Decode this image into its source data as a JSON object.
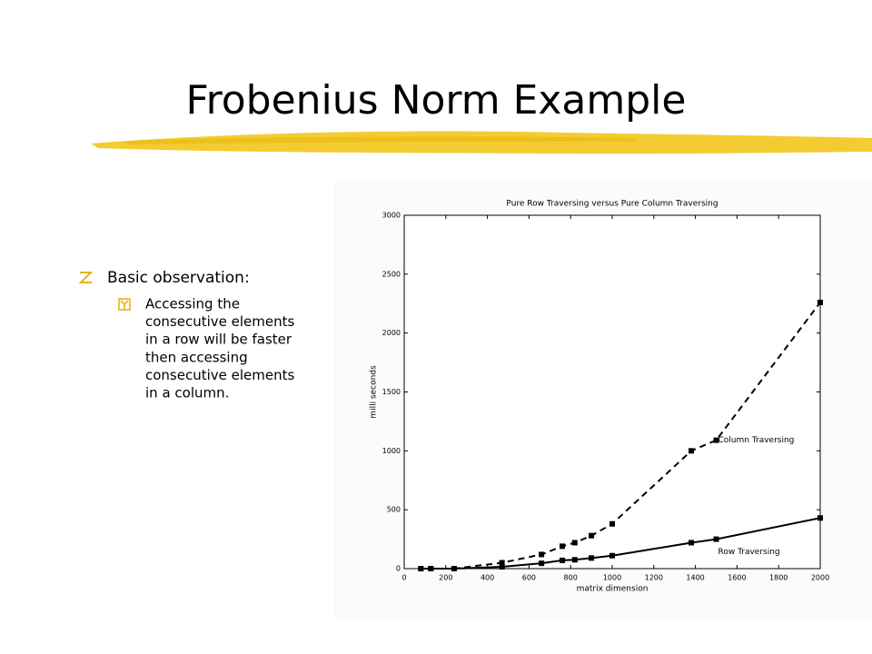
{
  "title": "Frobenius Norm Example",
  "bullets": [
    {
      "text": "Basic observation:",
      "sub": [
        {
          "lines": [
            "Accessing the",
            "consecutive elements",
            "in a row will be faster",
            "then accessing",
            "consecutive elements",
            "in a column."
          ]
        }
      ]
    }
  ],
  "chart_data": {
    "type": "line",
    "title": "Pure Row Traversing versus Pure Column Traversing",
    "x_label": "matrix dimension",
    "y_label": "milli seconds",
    "x": [
      80,
      128,
      240,
      470,
      660,
      760,
      820,
      900,
      1000,
      1380,
      1500,
      2000
    ],
    "series": [
      {
        "name": "Column Traversing",
        "color": "#000000",
        "style": "dashed",
        "values": [
          0,
          0,
          0,
          50,
          120,
          190,
          220,
          280,
          380,
          1000,
          1090,
          2260
        ]
      },
      {
        "name": "Row Traversing",
        "color": "#000000",
        "style": "solid",
        "values": [
          0,
          0,
          0,
          15,
          45,
          70,
          75,
          90,
          110,
          220,
          250,
          430
        ]
      }
    ],
    "xlim": [
      0,
      2000
    ],
    "xticks": [
      0,
      200,
      400,
      600,
      800,
      1000,
      1200,
      1400,
      1600,
      1800,
      2000
    ],
    "ylim": [
      0,
      3000
    ],
    "yticks": [
      0,
      500,
      1000,
      1500,
      2000,
      2500,
      3000
    ],
    "grid": false
  }
}
